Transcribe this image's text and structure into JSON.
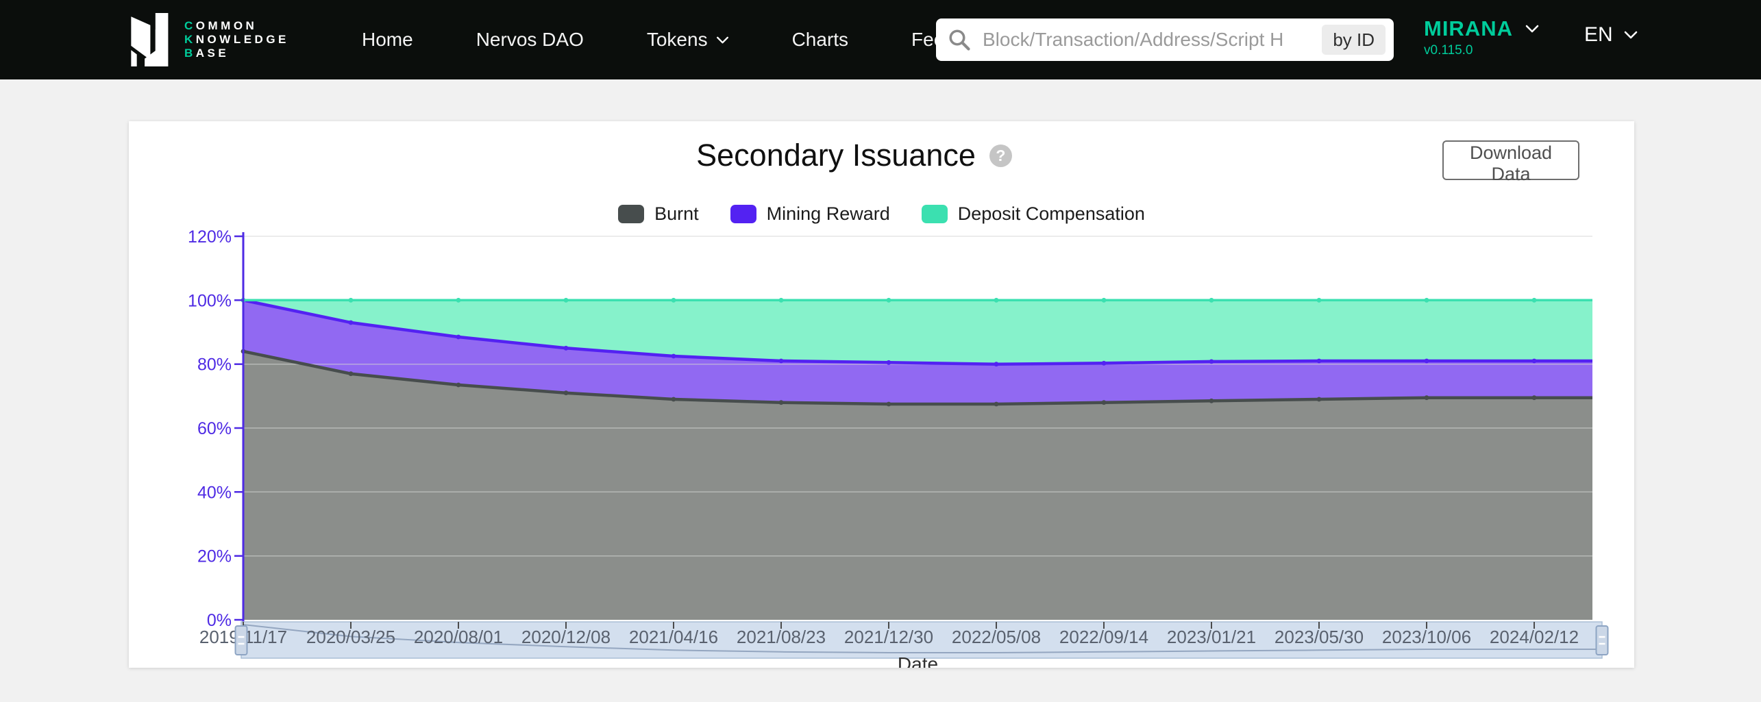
{
  "colors": {
    "header_bg": "#0b0e0c",
    "brand_green": "#00cc9b",
    "axis_purple": "#4e2ae4",
    "grid_line": "#d4d4d4",
    "x_label": "#59616e",
    "slider_band": "#d3dfee",
    "slider_border": "#aabdd6",
    "slider_preview": "#94a6c0",
    "handle_fill": "#cbd7e7",
    "handle_border": "#8da4c3"
  },
  "header": {
    "logo": {
      "lines": [
        {
          "first": "C",
          "rest": "OMMON"
        },
        {
          "first": "K",
          "rest": "NOWLEDGE"
        },
        {
          "first": "B",
          "rest": "ASE"
        }
      ]
    },
    "nav": [
      {
        "id": "home",
        "label": "Home",
        "has_dropdown": false
      },
      {
        "id": "nervos-dao",
        "label": "Nervos DAO",
        "has_dropdown": false
      },
      {
        "id": "tokens",
        "label": "Tokens",
        "has_dropdown": true
      },
      {
        "id": "charts",
        "label": "Charts",
        "has_dropdown": false
      },
      {
        "id": "fee-rate",
        "label": "Fee Rate",
        "has_dropdown": false
      }
    ],
    "search": {
      "placeholder": "Block/Transaction/Address/Script H",
      "by_id_label": "by ID"
    },
    "network": {
      "name": "MIRANA",
      "version": "v0.115.0"
    },
    "language": {
      "selected": "EN"
    }
  },
  "card": {
    "title": "Secondary Issuance",
    "help_glyph": "?",
    "download_button_label": "Download Data",
    "xlabel": "Date"
  },
  "chart_data": {
    "type": "area",
    "stacked": true,
    "title": "Secondary Issuance",
    "xlabel": "Date",
    "ylabel": "",
    "ylim": [
      0,
      120
    ],
    "grid": true,
    "legend_position": "top",
    "y_tick_labels": [
      "0%",
      "20%",
      "40%",
      "60%",
      "80%",
      "100%",
      "120%"
    ],
    "categories": [
      "2019/11/17",
      "2020/03/25",
      "2020/08/01",
      "2020/12/08",
      "2021/04/16",
      "2021/08/23",
      "2021/12/30",
      "2022/05/08",
      "2022/09/14",
      "2023/01/21",
      "2023/05/30",
      "2023/10/06",
      "2024/02/12"
    ],
    "series": [
      {
        "name": "Burnt",
        "color": "#474d4d",
        "fill": "#8b8e8b",
        "values": [
          84,
          77,
          73.5,
          71,
          69,
          68,
          67.5,
          67.5,
          68,
          68.5,
          69,
          69.5,
          69.5
        ]
      },
      {
        "name": "Mining Reward",
        "color": "#5322f2",
        "fill": "#9169f2",
        "values": [
          16,
          16,
          15,
          14,
          13.5,
          13,
          13,
          12.5,
          12.3,
          12.3,
          12,
          11.5,
          11.5
        ]
      },
      {
        "name": "Deposit Compensation",
        "color": "#3be0b0",
        "fill": "#86f2cb",
        "values": [
          0,
          7,
          11.5,
          15,
          17.5,
          19,
          19.5,
          20,
          19.7,
          19.2,
          19,
          19,
          19
        ]
      }
    ]
  }
}
